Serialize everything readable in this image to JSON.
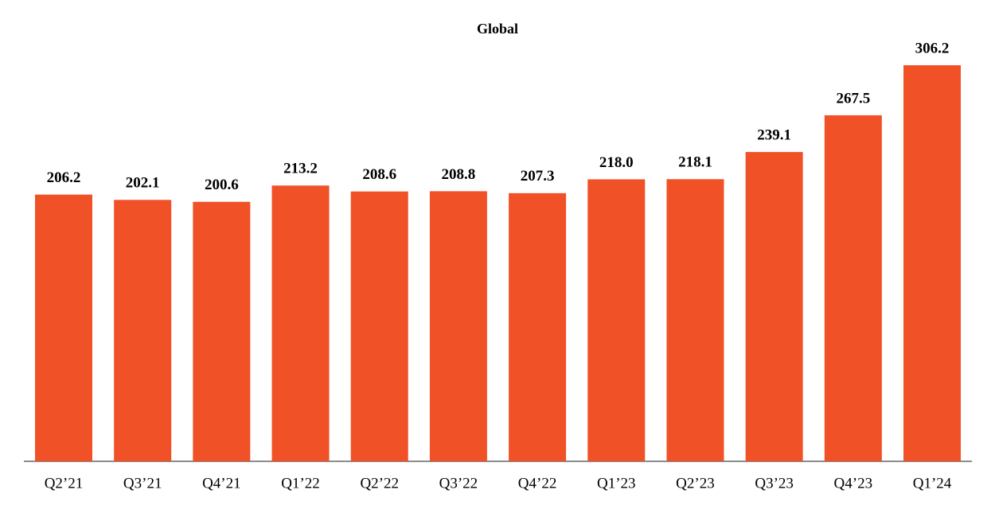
{
  "chart_data": {
    "type": "bar",
    "title": "Global",
    "categories": [
      "Q2’21",
      "Q3’21",
      "Q4’21",
      "Q1’22",
      "Q2’22",
      "Q3’22",
      "Q4’22",
      "Q1’23",
      "Q2’23",
      "Q3’23",
      "Q4’23",
      "Q1’24"
    ],
    "values": [
      206.2,
      202.1,
      200.6,
      213.2,
      208.6,
      208.8,
      207.3,
      218.0,
      218.1,
      239.1,
      267.5,
      306.2
    ],
    "value_labels": [
      "206.2",
      "202.1",
      "200.6",
      "213.2",
      "208.6",
      "208.8",
      "207.3",
      "218.0",
      "218.1",
      "239.1",
      "267.5",
      "306.2"
    ],
    "color": "#f05127"
  }
}
